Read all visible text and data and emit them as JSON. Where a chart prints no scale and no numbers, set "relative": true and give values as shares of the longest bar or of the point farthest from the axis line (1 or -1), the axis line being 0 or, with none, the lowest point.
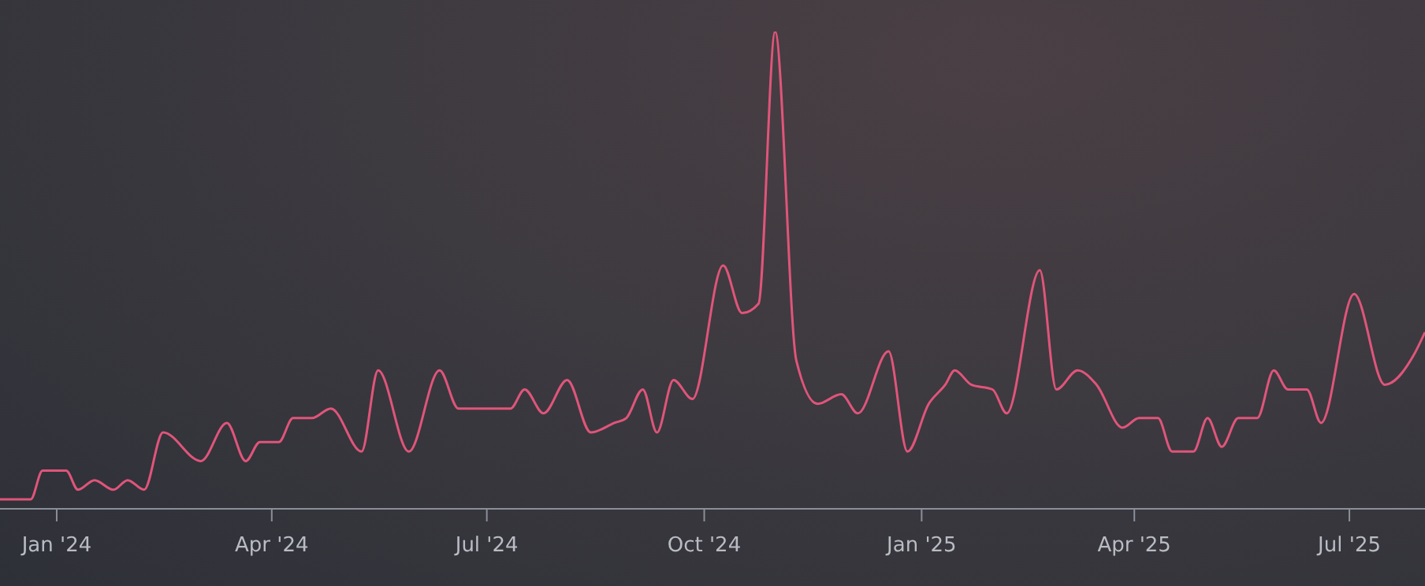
{
  "chart_data": {
    "type": "line",
    "relative": true,
    "marker": "none",
    "line_style": "solid",
    "grid": false,
    "legend": false,
    "x": [
      "2023-12-08",
      "2023-12-21",
      "2023-12-26",
      "2024-01-05",
      "2024-01-10",
      "2024-01-17",
      "2024-01-25",
      "2024-01-31",
      "2024-02-07",
      "2024-02-15",
      "2024-03-02",
      "2024-03-13",
      "2024-03-21",
      "2024-03-27",
      "2024-04-04",
      "2024-04-10",
      "2024-04-18",
      "2024-04-26",
      "2024-05-09",
      "2024-05-16",
      "2024-05-29",
      "2024-06-11",
      "2024-06-19",
      "2024-07-11",
      "2024-07-17",
      "2024-07-25",
      "2024-08-04",
      "2024-08-14",
      "2024-08-24",
      "2024-08-29",
      "2024-09-05",
      "2024-09-11",
      "2024-09-18",
      "2024-09-26",
      "2024-10-09",
      "2024-10-17",
      "2024-10-24",
      "2024-10-31",
      "2024-11-09",
      "2024-11-18",
      "2024-11-28",
      "2024-12-05",
      "2024-12-18",
      "2024-12-26",
      "2025-01-04",
      "2025-01-11",
      "2025-01-15",
      "2025-01-22",
      "2025-01-31",
      "2025-02-06",
      "2025-02-20",
      "2025-02-27",
      "2025-03-08",
      "2025-03-16",
      "2025-03-27",
      "2025-04-03",
      "2025-04-11",
      "2025-04-17",
      "2025-04-26",
      "2025-05-02",
      "2025-05-08",
      "2025-05-15",
      "2025-05-23",
      "2025-05-30",
      "2025-06-05",
      "2025-06-13",
      "2025-06-19",
      "2025-07-03",
      "2025-07-16",
      "2025-07-28",
      "2025-08-02"
    ],
    "series": [
      {
        "color": "#e0557a",
        "values": [
          0.02,
          0.02,
          0.08,
          0.08,
          0.04,
          0.06,
          0.04,
          0.06,
          0.04,
          0.16,
          0.1,
          0.18,
          0.1,
          0.14,
          0.14,
          0.19,
          0.19,
          0.21,
          0.12,
          0.29,
          0.12,
          0.29,
          0.21,
          0.21,
          0.25,
          0.2,
          0.27,
          0.16,
          0.18,
          0.19,
          0.25,
          0.16,
          0.27,
          0.23,
          0.51,
          0.41,
          0.43,
          1.0,
          0.31,
          0.22,
          0.24,
          0.2,
          0.33,
          0.12,
          0.22,
          0.26,
          0.29,
          0.26,
          0.25,
          0.2,
          0.5,
          0.25,
          0.29,
          0.26,
          0.17,
          0.19,
          0.19,
          0.12,
          0.12,
          0.19,
          0.13,
          0.19,
          0.19,
          0.29,
          0.25,
          0.25,
          0.18,
          0.45,
          0.26,
          0.32,
          0.37
        ]
      }
    ],
    "xlim": [
      "2023-12-08",
      "2025-08-02"
    ],
    "xticks": [
      {
        "value": "2024-01-01",
        "label": "Jan '24"
      },
      {
        "value": "2024-04-01",
        "label": "Apr '24"
      },
      {
        "value": "2024-07-01",
        "label": "Jul '24"
      },
      {
        "value": "2024-10-01",
        "label": "Oct '24"
      },
      {
        "value": "2025-01-01",
        "label": "Jan '25"
      },
      {
        "value": "2025-04-01",
        "label": "Apr '25"
      },
      {
        "value": "2025-07-01",
        "label": "Jul '25"
      }
    ]
  }
}
